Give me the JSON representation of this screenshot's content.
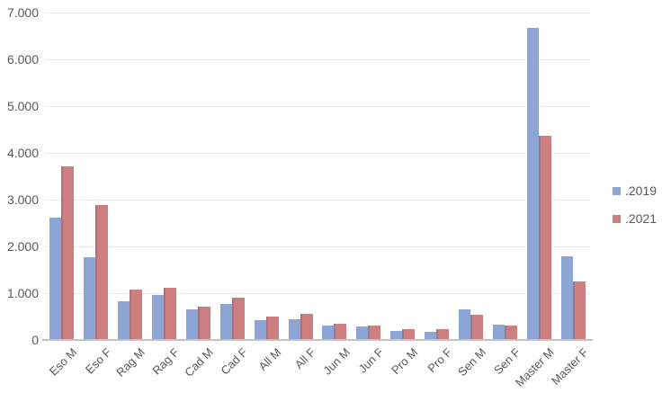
{
  "chart_data": {
    "type": "bar",
    "title": "",
    "xlabel": "",
    "ylabel": "",
    "categories": [
      "Eso M",
      "Eso F",
      "Rag M",
      "Rag F",
      "Cad M",
      "Cad F",
      "All M",
      "All F",
      "Jun M",
      "Jun F",
      "Pro M",
      "Pro F",
      "Sen M",
      "Sen F",
      "Master M",
      "Master F"
    ],
    "series": [
      {
        "name": ".2019",
        "color": "#8ca5d4",
        "values": [
          2600,
          1750,
          800,
          950,
          630,
          750,
          400,
          420,
          280,
          270,
          170,
          160,
          630,
          310,
          6650,
          1770
        ]
      },
      {
        "name": ".2021",
        "color": "#cd7e7e",
        "values": [
          3700,
          2870,
          1050,
          1100,
          700,
          890,
          480,
          540,
          320,
          280,
          210,
          210,
          520,
          280,
          4350,
          1230
        ]
      }
    ],
    "ylim": [
      0,
      7000
    ],
    "ytick_step": 1000,
    "yticks": [
      0,
      1000,
      2000,
      3000,
      4000,
      5000,
      6000,
      7000
    ],
    "ytick_labels": [
      "0",
      "1.000",
      "2.000",
      "3.000",
      "4.000",
      "5.000",
      "6.000",
      "7.000"
    ],
    "grid": true,
    "legend_position": "right",
    "overlap_seam_color": "#a27585",
    "grid_color": "#e9e9ec",
    "axis_color": "#c3c3c3",
    "text_color": "#595959"
  },
  "legend": {
    "items": [
      {
        "label": ".2019",
        "color": "#8ca5d4"
      },
      {
        "label": ".2021",
        "color": "#cd7e7e"
      }
    ]
  }
}
